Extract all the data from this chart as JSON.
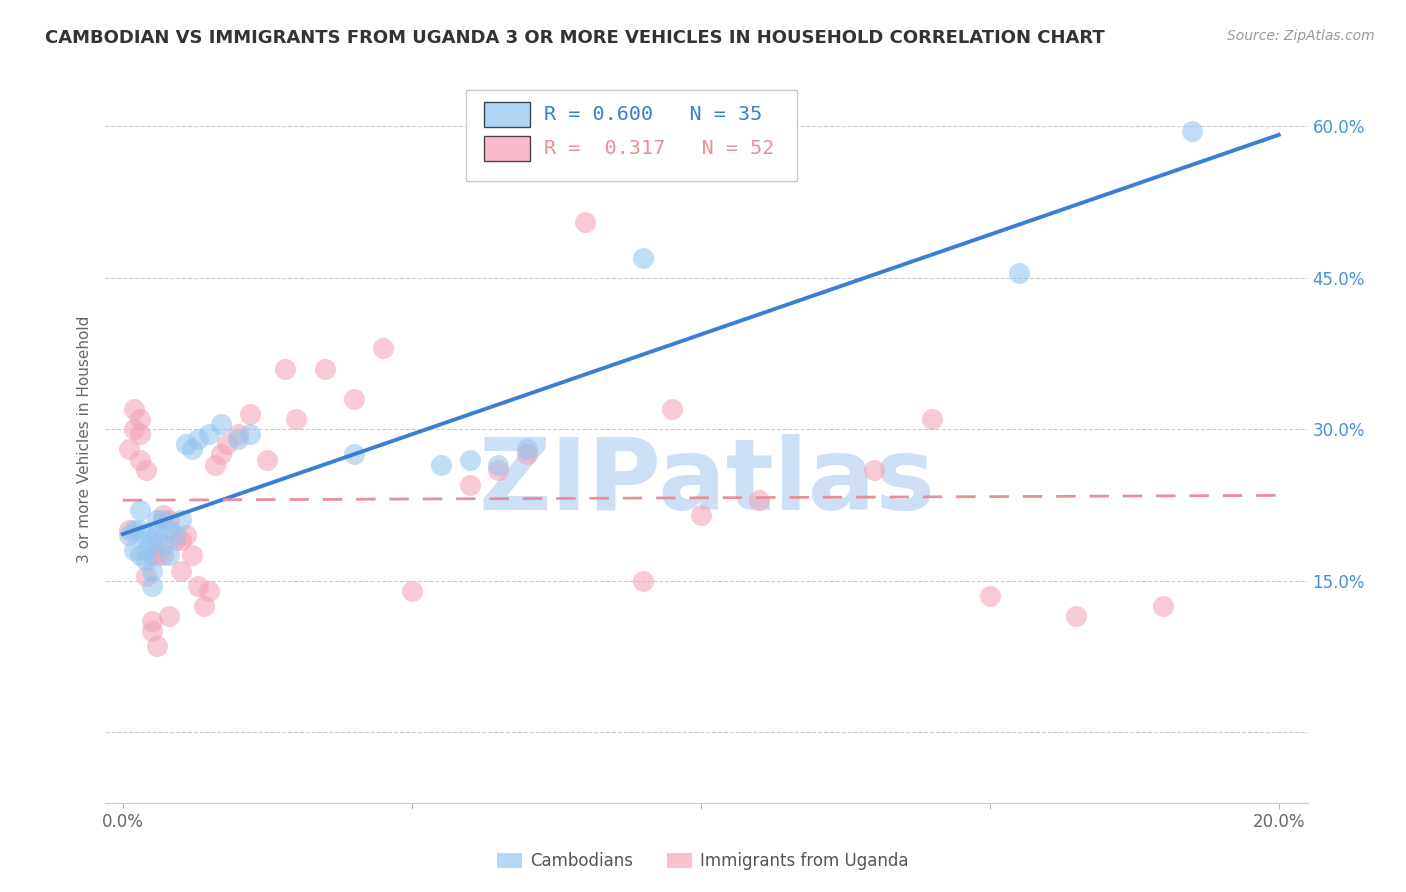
{
  "title": "CAMBODIAN VS IMMIGRANTS FROM UGANDA 3 OR MORE VEHICLES IN HOUSEHOLD CORRELATION CHART",
  "source": "Source: ZipAtlas.com",
  "ylabel": "3 or more Vehicles in Household",
  "x_ticks": [
    0.0,
    0.05,
    0.1,
    0.15,
    0.2
  ],
  "x_tick_labels": [
    "0.0%",
    "",
    "",
    "",
    "20.0%"
  ],
  "y_ticks": [
    0.0,
    0.15,
    0.3,
    0.45,
    0.6
  ],
  "y_tick_labels_right": [
    "",
    "15.0%",
    "30.0%",
    "45.0%",
    "60.0%"
  ],
  "xlim": [
    -0.003,
    0.205
  ],
  "ylim": [
    -0.07,
    0.65
  ],
  "legend_R_cam": "0.600",
  "legend_N_cam": "35",
  "legend_R_uga": "0.317",
  "legend_N_uga": "52",
  "color_cambodian": "#90c4f0",
  "color_uganda": "#f4a0b5",
  "color_reg_cam": "#3a7fd4",
  "color_reg_uga": "#e8909a",
  "watermark_text": "ZIPatlas",
  "watermark_color": "#cddff5",
  "bg_color": "#ffffff",
  "grid_color": "#cccccc",
  "tick_color_right": "#4a90d9",
  "title_color": "#333333",
  "cam_x": [
    0.001,
    0.002,
    0.002,
    0.003,
    0.003,
    0.003,
    0.004,
    0.004,
    0.004,
    0.005,
    0.005,
    0.005,
    0.006,
    0.006,
    0.007,
    0.007,
    0.008,
    0.008,
    0.009,
    0.01,
    0.011,
    0.012,
    0.013,
    0.015,
    0.017,
    0.02,
    0.022,
    0.04,
    0.055,
    0.06,
    0.065,
    0.07,
    0.09,
    0.155,
    0.185
  ],
  "cam_y": [
    0.195,
    0.2,
    0.18,
    0.22,
    0.2,
    0.175,
    0.195,
    0.18,
    0.17,
    0.19,
    0.16,
    0.145,
    0.21,
    0.195,
    0.21,
    0.185,
    0.2,
    0.175,
    0.195,
    0.21,
    0.285,
    0.28,
    0.29,
    0.295,
    0.305,
    0.29,
    0.295,
    0.275,
    0.265,
    0.27,
    0.265,
    0.28,
    0.47,
    0.455,
    0.595
  ],
  "uga_x": [
    0.001,
    0.001,
    0.002,
    0.002,
    0.003,
    0.003,
    0.003,
    0.004,
    0.004,
    0.005,
    0.005,
    0.005,
    0.006,
    0.006,
    0.006,
    0.007,
    0.007,
    0.008,
    0.008,
    0.009,
    0.01,
    0.01,
    0.011,
    0.012,
    0.013,
    0.014,
    0.015,
    0.016,
    0.017,
    0.018,
    0.02,
    0.022,
    0.025,
    0.028,
    0.03,
    0.035,
    0.04,
    0.045,
    0.05,
    0.06,
    0.065,
    0.07,
    0.08,
    0.09,
    0.095,
    0.1,
    0.11,
    0.13,
    0.14,
    0.15,
    0.165,
    0.18
  ],
  "uga_y": [
    0.2,
    0.28,
    0.3,
    0.32,
    0.31,
    0.295,
    0.27,
    0.26,
    0.155,
    0.1,
    0.175,
    0.11,
    0.19,
    0.175,
    0.085,
    0.215,
    0.175,
    0.21,
    0.115,
    0.19,
    0.19,
    0.16,
    0.195,
    0.175,
    0.145,
    0.125,
    0.14,
    0.265,
    0.275,
    0.285,
    0.295,
    0.315,
    0.27,
    0.36,
    0.31,
    0.36,
    0.33,
    0.38,
    0.14,
    0.245,
    0.26,
    0.275,
    0.505,
    0.15,
    0.32,
    0.215,
    0.23,
    0.26,
    0.31,
    0.135,
    0.115,
    0.125
  ]
}
